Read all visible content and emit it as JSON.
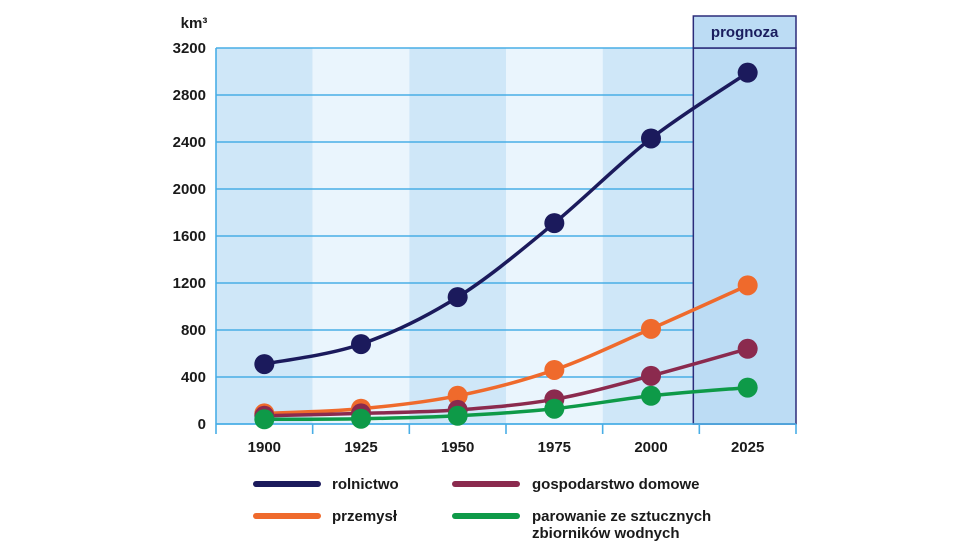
{
  "chart_data": {
    "type": "line",
    "unit_label": "km³",
    "forecast_label": "prognoza",
    "x": [
      1900,
      1925,
      1950,
      1975,
      2000,
      2025
    ],
    "x_tick_labels": [
      "1900",
      "1925",
      "1950",
      "1975",
      "2000",
      "2025"
    ],
    "y_ticks": [
      0,
      400,
      800,
      1200,
      1600,
      2000,
      2400,
      2800,
      3200
    ],
    "y_tick_labels": [
      "0",
      "400",
      "800",
      "1200",
      "1600",
      "2000",
      "2400",
      "2800",
      "3200"
    ],
    "ylim": [
      0,
      3200
    ],
    "forecast_from": 2025,
    "series": [
      {
        "name": "rolnictwo",
        "color": "#1b1a5c",
        "values": [
          510,
          680,
          1080,
          1710,
          2430,
          2990
        ]
      },
      {
        "name": "przemysł",
        "color": "#ef6a2c",
        "values": [
          90,
          130,
          240,
          460,
          810,
          1180
        ]
      },
      {
        "name": "gospodarstwo domowe",
        "color": "#8b2a4e",
        "values": [
          70,
          90,
          120,
          210,
          410,
          640
        ]
      },
      {
        "name": "parowanie ze sztucznych zbiorników wodnych",
        "name_lines": [
          "parowanie ze sztucznych",
          "zbiorników wodnych"
        ],
        "color": "#0e9a48",
        "values": [
          40,
          45,
          70,
          130,
          240,
          310
        ]
      }
    ]
  }
}
